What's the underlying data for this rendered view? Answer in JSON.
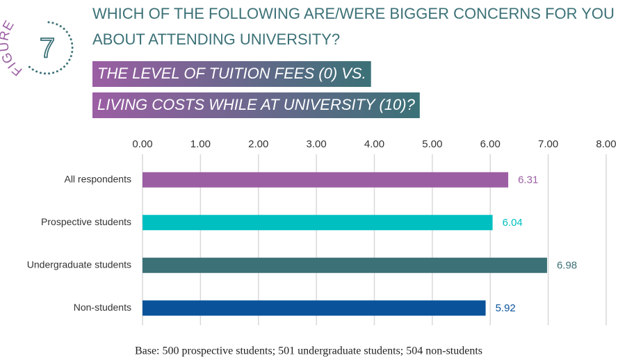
{
  "chart_data": {
    "type": "bar",
    "orientation": "horizontal",
    "figure_label": "FIGURE",
    "figure_number": "7",
    "title": [
      "WHICH OF THE FOLLOWING ARE/WERE BIGGER CONCERNS FOR YOU",
      "ABOUT ATTENDING UNIVERSITY?"
    ],
    "subtitle": [
      "THE LEVEL OF TUITION FEES (0) VS.",
      "LIVING COSTS WHILE AT UNIVERSITY (10)?"
    ],
    "categories": [
      "All respondents",
      "Prospective students",
      "Undergraduate students",
      "Non-students"
    ],
    "values": [
      6.31,
      6.04,
      6.98,
      5.92
    ],
    "colors": [
      "#9b5ea3",
      "#00bfc0",
      "#3b7177",
      "#0a539b"
    ],
    "xlim": [
      0,
      8
    ],
    "xticks": [
      {
        "value": 0,
        "label": "0.00"
      },
      {
        "value": 1,
        "label": "1.00"
      },
      {
        "value": 2,
        "label": "2.00"
      },
      {
        "value": 3,
        "label": "3.00"
      },
      {
        "value": 4,
        "label": "4.00"
      },
      {
        "value": 5,
        "label": "5.00"
      },
      {
        "value": 6,
        "label": "6.00"
      },
      {
        "value": 7,
        "label": "7.00"
      },
      {
        "value": 8,
        "label": "8.00"
      }
    ],
    "grid": true,
    "footnote": "Base: 500 prospective students; 501 undergraduate students; 504 non-students"
  }
}
